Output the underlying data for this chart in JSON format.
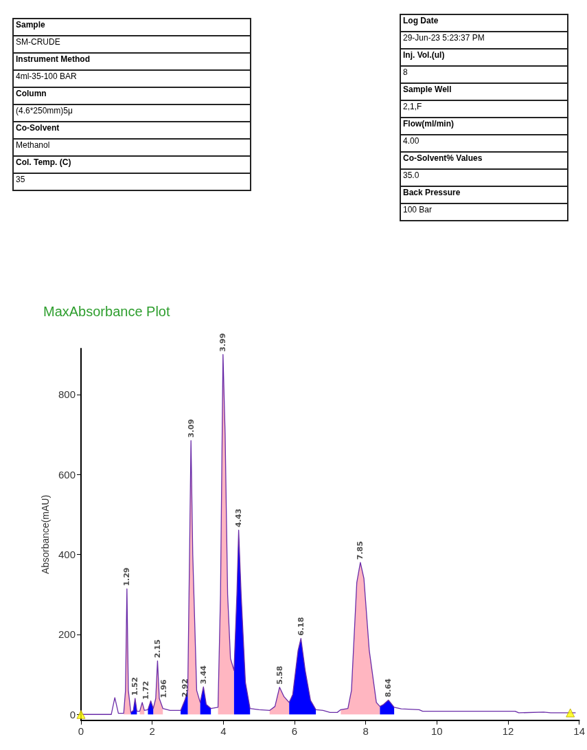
{
  "chart_data": [
    {
      "type": "other",
      "annotations": [
        "Sample",
        "SM-CRUDE",
        "Instrument Method",
        "4ml-35-100 BAR",
        "Column",
        "(4.6*250mm)5μ",
        "Co-Solvent",
        "Methanol",
        "Col. Temp. (C)",
        "35"
      ]
    },
    {
      "type": "other",
      "annotations": [
        "Log Date",
        "29-Jun-23 5:23:37 PM",
        "Inj. Vol.(ul)",
        "8",
        "Sample Well",
        "2,1,F",
        "Flow(ml/min)",
        "4.00",
        "Co-Solvent% Values",
        "35.0",
        "Back Pressure",
        "100  Bar"
      ]
    },
    {
      "type": "line",
      "title": "MaxAbsorbance Plot",
      "ylabel": "Absorbance(mAU)",
      "xlim": [
        0,
        14
      ],
      "xticks": [
        0,
        2,
        4,
        6,
        8,
        10,
        12,
        14
      ],
      "ylim": [
        -15,
        915
      ],
      "yticks": [
        0,
        200,
        400,
        600,
        800
      ],
      "grid": false,
      "x": [
        0,
        0.85,
        0.95,
        1.05,
        1.2,
        1.25,
        1.29,
        1.33,
        1.4,
        1.47,
        1.52,
        1.57,
        1.65,
        1.72,
        1.78,
        1.88,
        1.96,
        2.03,
        2.1,
        2.15,
        2.2,
        2.3,
        2.5,
        2.8,
        2.92,
        3.0,
        3.05,
        3.09,
        3.14,
        3.25,
        3.35,
        3.44,
        3.52,
        3.65,
        3.85,
        3.92,
        3.99,
        4.05,
        4.12,
        4.2,
        4.3,
        4.38,
        4.43,
        4.5,
        4.62,
        4.75,
        5.0,
        5.3,
        5.45,
        5.58,
        5.7,
        5.85,
        5.95,
        6.1,
        6.18,
        6.3,
        6.45,
        6.6,
        6.8,
        7.0,
        7.2,
        7.3,
        7.5,
        7.6,
        7.75,
        7.85,
        7.95,
        8.1,
        8.3,
        8.4,
        8.5,
        8.64,
        8.8,
        9.0,
        9.5,
        9.6,
        12.2,
        12.3,
        13.0,
        13.2,
        13.9
      ],
      "series": [
        {
          "type": "area",
          "color": "#ffb6c1",
          "values": [
            null,
            null,
            null,
            null,
            3,
            60,
            314,
            60,
            5,
            null,
            null,
            null,
            8,
            30,
            10,
            null,
            null,
            15,
            40,
            134,
            40,
            15,
            null,
            null,
            null,
            60,
            400,
            685,
            400,
            60,
            30,
            null,
            null,
            null,
            18,
            300,
            900,
            700,
            300,
            140,
            110,
            null,
            null,
            null,
            null,
            null,
            null,
            10,
            20,
            68,
            45,
            30,
            null,
            null,
            null,
            null,
            null,
            null,
            null,
            null,
            null,
            12,
            15,
            60,
            330,
            380,
            340,
            160,
            30,
            20,
            null,
            null,
            null,
            null,
            null,
            null,
            null,
            null,
            null,
            null,
            null
          ]
        },
        {
          "type": "area",
          "color": "#0000ff",
          "values": [
            null,
            null,
            null,
            null,
            null,
            null,
            null,
            null,
            5,
            10,
            40,
            8,
            null,
            null,
            null,
            12,
            34,
            15,
            null,
            null,
            null,
            null,
            null,
            10,
            36,
            60,
            null,
            null,
            null,
            null,
            30,
            69,
            25,
            15,
            null,
            null,
            null,
            null,
            null,
            null,
            110,
            300,
            461,
            300,
            80,
            15,
            null,
            null,
            null,
            null,
            null,
            30,
            50,
            160,
            190,
            110,
            35,
            12,
            null,
            null,
            null,
            null,
            null,
            null,
            null,
            null,
            null,
            null,
            null,
            20,
            25,
            36,
            18,
            null,
            null,
            null,
            null,
            null,
            null,
            null,
            null
          ]
        },
        {
          "type": "line",
          "color": "#6a2ca8",
          "marker": "none",
          "line_style": "solid",
          "values": [
            0,
            0,
            42,
            3,
            3,
            60,
            314,
            60,
            5,
            10,
            40,
            8,
            8,
            30,
            10,
            12,
            34,
            15,
            40,
            134,
            40,
            15,
            10,
            10,
            36,
            60,
            400,
            685,
            400,
            60,
            30,
            69,
            25,
            15,
            18,
            300,
            900,
            700,
            300,
            140,
            110,
            300,
            461,
            300,
            80,
            15,
            12,
            10,
            20,
            68,
            45,
            30,
            50,
            160,
            190,
            110,
            35,
            12,
            10,
            5,
            5,
            12,
            15,
            60,
            330,
            380,
            340,
            160,
            30,
            20,
            25,
            36,
            18,
            14,
            12,
            8,
            8,
            4,
            6,
            4,
            4
          ]
        },
        {
          "type": "scatter",
          "color": "#ffff00",
          "marker": "triangle",
          "x": [
            0,
            13.75
          ],
          "values": [
            0,
            4
          ]
        }
      ],
      "annotations": [
        {
          "text": "1.29",
          "x": 1.29,
          "y": 314
        },
        {
          "text": "1.52",
          "x": 1.52,
          "y": 40
        },
        {
          "text": "1.72",
          "x": 1.82,
          "y": 30
        },
        {
          "text": "1.96",
          "x": 2.32,
          "y": 34
        },
        {
          "text": "2.15",
          "x": 2.15,
          "y": 134
        },
        {
          "text": "3.09",
          "x": 3.09,
          "y": 685
        },
        {
          "text": "3.44",
          "x": 3.44,
          "y": 69
        },
        {
          "text": "2.92",
          "x": 2.92,
          "y": 36
        },
        {
          "text": "3.99",
          "x": 3.99,
          "y": 900
        },
        {
          "text": "4.43",
          "x": 4.43,
          "y": 461
        },
        {
          "text": "5.58",
          "x": 5.58,
          "y": 68
        },
        {
          "text": "6.18",
          "x": 6.18,
          "y": 190
        },
        {
          "text": "7.85",
          "x": 7.85,
          "y": 380
        },
        {
          "text": "8.64",
          "x": 8.64,
          "y": 36
        }
      ]
    }
  ]
}
